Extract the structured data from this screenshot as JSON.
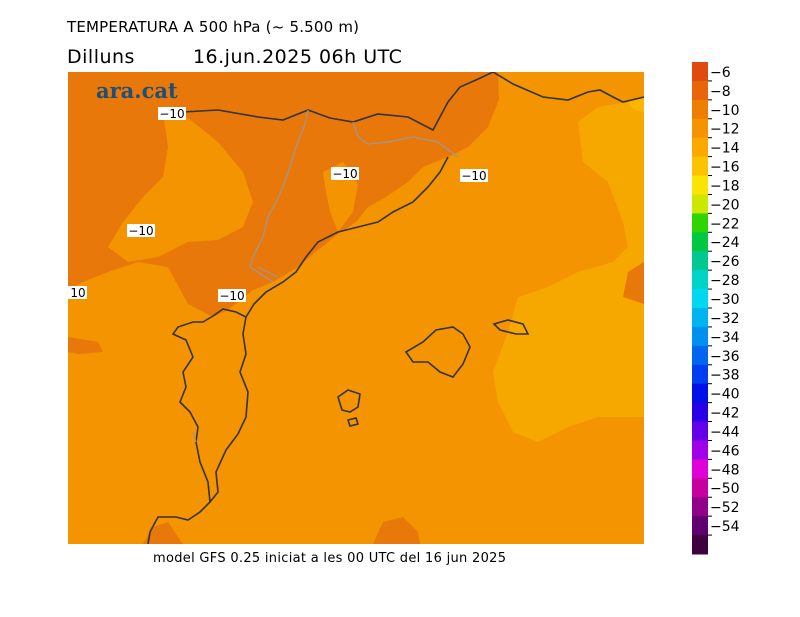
{
  "header": {
    "title": "TEMPERATURA A 500 hPa (~ 5.500 m)",
    "day": "Dilluns",
    "datetime": "16.jun.2025 06h UTC"
  },
  "brand": "ara.cat",
  "footer": "model GFS 0.25 iniciat a les 00 UTC del 16 jun 2025",
  "contour_labels": [
    "−10",
    "−10",
    "−10",
    "−10",
    "−10",
    "10"
  ],
  "legend": {
    "labels": [
      "−6",
      "−8",
      "−10",
      "−12",
      "−14",
      "−16",
      "−18",
      "−20",
      "−22",
      "−24",
      "−26",
      "−28",
      "−30",
      "−32",
      "−34",
      "−36",
      "−38",
      "−40",
      "−42",
      "−44",
      "−46",
      "−48",
      "−50",
      "−52",
      "−54"
    ],
    "colors": [
      "#e04a10",
      "#e8650a",
      "#ee7e00",
      "#f59300",
      "#fba800",
      "#fdc200",
      "#fde400",
      "#cde800",
      "#30d400",
      "#00c840",
      "#00c890",
      "#00d4c8",
      "#00d8f0",
      "#00b4f0",
      "#0090f0",
      "#0066f0",
      "#003cf0",
      "#0010e8",
      "#2800e8",
      "#6400e8",
      "#a000e8",
      "#e000d8",
      "#c800a0",
      "#900088",
      "#600070",
      "#400040"
    ]
  },
  "map_colors": {
    "darker": "#e8780a",
    "base": "#f39400",
    "lighter": "#f7a800",
    "coast": "#333333",
    "border": "#999999"
  }
}
